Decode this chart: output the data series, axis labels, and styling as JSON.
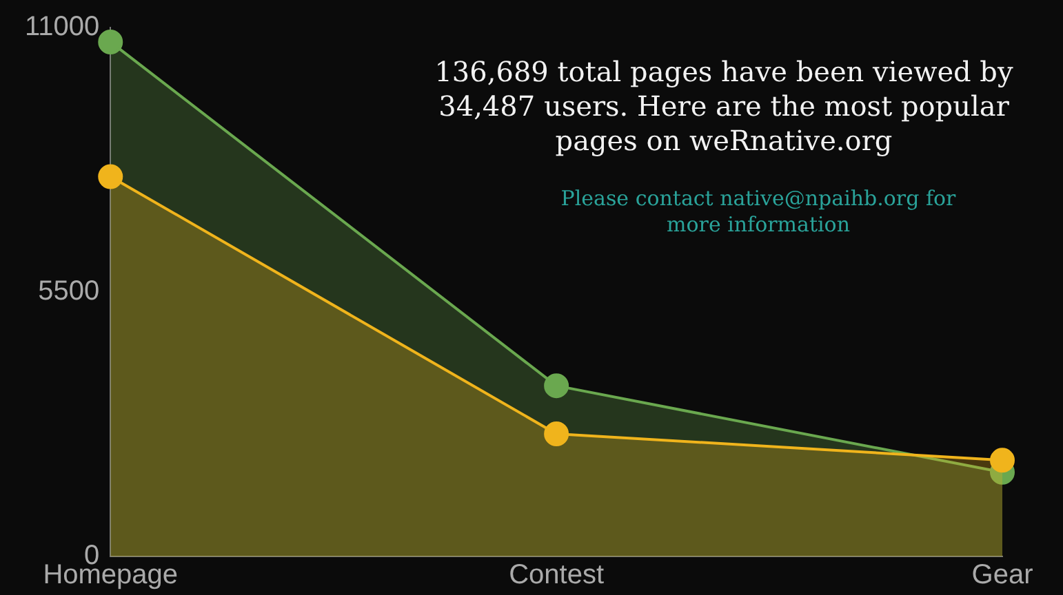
{
  "chart_data": {
    "type": "area",
    "categories": [
      "Homepage",
      "Contest",
      "Gear"
    ],
    "series": [
      {
        "color": "#6aa84f",
        "values": [
          10700,
          3550,
          1750
        ]
      },
      {
        "color": "#f0b41c",
        "values": [
          7900,
          2550,
          2000
        ]
      }
    ],
    "ylim": [
      0,
      11000
    ],
    "yticks": [
      0,
      5500,
      11000
    ],
    "legend": false,
    "marker": "circle",
    "line_style": "solid",
    "annotations": [
      "136,689 total pages have been viewed by 34,487 users. Here are the most popular pages on weRnative.org",
      "Please contact native@npaihb.org for more information"
    ]
  }
}
